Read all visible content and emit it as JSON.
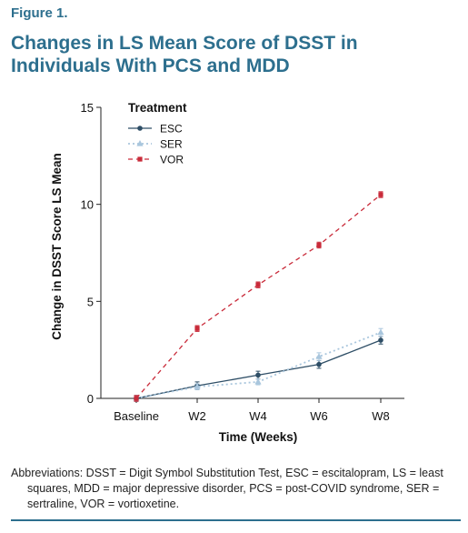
{
  "figure": {
    "label": "Figure 1.",
    "title": "Changes in LS Mean Score of DSST in Individuals With PCS and MDD",
    "abbreviations": "Abbreviations: DSST = Digit Symbol Substitution Test, ESC = escitalopram, LS = least squares, MDD = major depressive disorder, PCS = post-COVID syndrome, SER = sertraline, VOR = vortioxetine."
  },
  "colors": {
    "title": "#2d6f8e",
    "ESC": "#2e4e66",
    "SER": "#a9c6dd",
    "VOR": "#c92b3a",
    "axis": "#222222"
  },
  "chart_data": {
    "type": "line",
    "xlabel": "Time (Weeks)",
    "ylabel": "Change in DSST Score LS Mean",
    "categories": [
      "Baseline",
      "W2",
      "W4",
      "W6",
      "W8"
    ],
    "ylim": [
      0,
      15
    ],
    "yticks": [
      0,
      5,
      10,
      15
    ],
    "grid": false,
    "legend": {
      "title": "Treatment",
      "placement": "top-left"
    },
    "series": [
      {
        "name": "ESC",
        "values": [
          0,
          0.65,
          1.2,
          1.75,
          3.0
        ],
        "errors": [
          0.15,
          0.2,
          0.2,
          0.2,
          0.2
        ],
        "line": "solid",
        "marker": "circle"
      },
      {
        "name": "SER",
        "values": [
          0,
          0.6,
          0.85,
          2.15,
          3.4
        ],
        "errors": [
          0.15,
          0.15,
          0.15,
          0.2,
          0.2
        ],
        "line": "dotted",
        "marker": "triangle"
      },
      {
        "name": "VOR",
        "values": [
          0,
          3.6,
          5.85,
          7.9,
          10.5
        ],
        "errors": [
          0.15,
          0.15,
          0.15,
          0.15,
          0.15
        ],
        "line": "dashed",
        "marker": "square"
      }
    ]
  }
}
